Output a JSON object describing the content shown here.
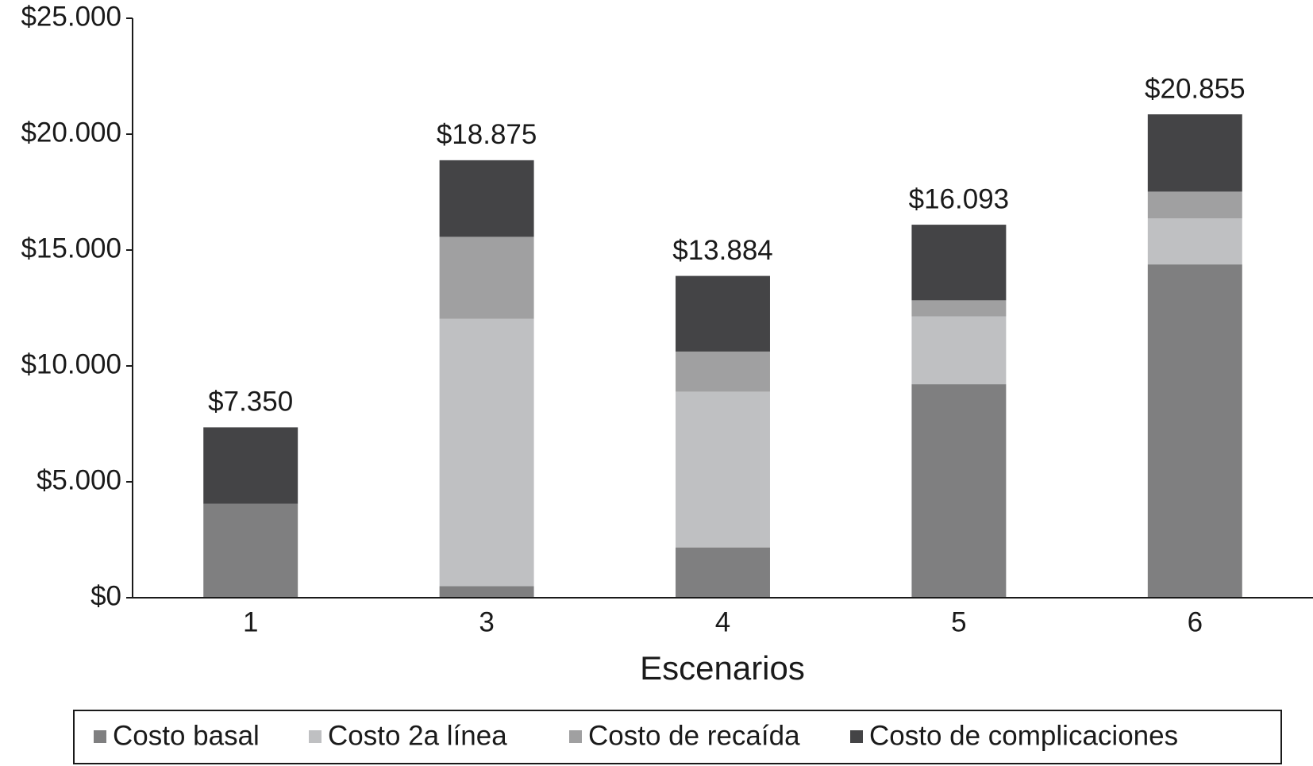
{
  "chart_data": {
    "type": "stacked_bar",
    "x_label": "Escenarios",
    "categories": [
      "1",
      "3",
      "4",
      "5",
      "6"
    ],
    "series": [
      {
        "name": "Costo basal",
        "color": "#7f7f80",
        "values": [
          4050,
          500,
          2170,
          9210,
          14380
        ]
      },
      {
        "name": "Costo 2a línea",
        "color": "#bfc0c2",
        "values": [
          0,
          11530,
          6720,
          2930,
          1990
        ]
      },
      {
        "name": "Costo de recaída",
        "color": "#a0a0a1",
        "values": [
          0,
          3540,
          1730,
          690,
          1150
        ]
      },
      {
        "name": "Costo de complicaciones",
        "color": "#444446",
        "values": [
          3300,
          3305,
          3264,
          3263,
          3335
        ]
      }
    ],
    "totals": {
      "values": [
        7350,
        18875,
        13884,
        16093,
        20855
      ],
      "value_labels": [
        "$7.350",
        "$18.875",
        "$13.884",
        "$16.093",
        "$20.855"
      ]
    },
    "ylim": [
      0,
      25000
    ],
    "yticks": [
      {
        "value": 0,
        "label": "$0"
      },
      {
        "value": 5000,
        "label": "$5.000"
      },
      {
        "value": 10000,
        "label": "$10.000"
      },
      {
        "value": 15000,
        "label": "$15.000"
      },
      {
        "value": 20000,
        "label": "$20.000"
      },
      {
        "value": 25000,
        "label": "$25.000"
      }
    ],
    "legend": "bottom"
  }
}
